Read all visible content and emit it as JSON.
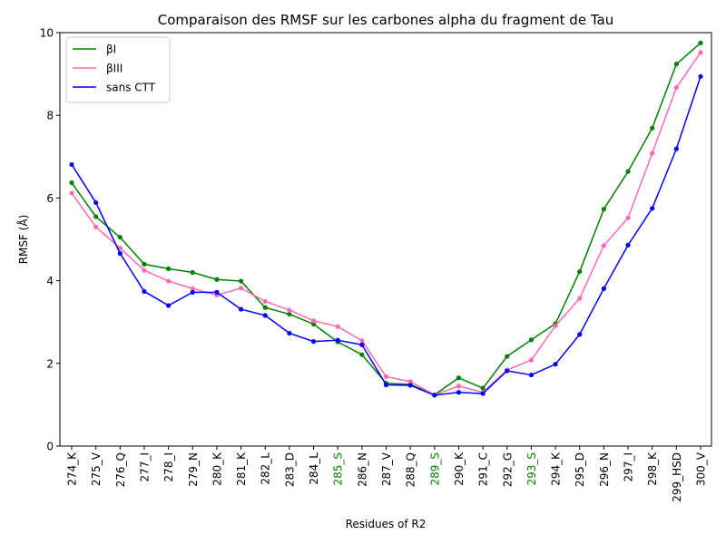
{
  "chart_data": {
    "type": "line",
    "title": "Comparaison des RMSF sur les carbones alpha du fragment de Tau",
    "xlabel": "Residues of R2",
    "ylabel": "RMSF (Å)",
    "ylim": [
      0,
      10
    ],
    "yticks": [
      0,
      2,
      4,
      6,
      8,
      10
    ],
    "grid": false,
    "legend_position": "top-left",
    "categories": [
      "274_K",
      "275_V",
      "276_Q",
      "277_I",
      "278_I",
      "279_N",
      "280_K",
      "281_K",
      "282_L",
      "283_D",
      "284_L",
      "285_S",
      "286_N",
      "287_V",
      "288_Q",
      "289_S",
      "290_K",
      "291_C",
      "292_G",
      "293_S",
      "294_K",
      "295_D",
      "296_N",
      "297_I",
      "298_K",
      "299_HSD",
      "300_V"
    ],
    "highlighted_categories": [
      "285_S",
      "289_S",
      "293_S"
    ],
    "highlight_color": "#008000",
    "series": [
      {
        "name": "βI",
        "color": "#008000",
        "values": [
          6.37,
          5.55,
          5.05,
          4.4,
          4.29,
          4.2,
          4.03,
          3.99,
          3.35,
          3.19,
          2.95,
          2.52,
          2.21,
          1.52,
          1.49,
          1.24,
          1.65,
          1.4,
          2.17,
          2.57,
          2.96,
          4.22,
          5.73,
          6.64,
          7.69,
          9.24,
          9.75
        ]
      },
      {
        "name": "βIII",
        "color": "#ff69b4",
        "values": [
          6.12,
          5.3,
          4.79,
          4.25,
          3.99,
          3.81,
          3.65,
          3.82,
          3.5,
          3.29,
          3.03,
          2.89,
          2.55,
          1.68,
          1.56,
          1.24,
          1.45,
          1.3,
          1.84,
          2.08,
          2.91,
          3.57,
          4.85,
          5.52,
          7.08,
          8.67,
          9.52
        ]
      },
      {
        "name": "sans CTT",
        "color": "#0000ff",
        "values": [
          6.81,
          5.89,
          4.66,
          3.74,
          3.4,
          3.72,
          3.72,
          3.31,
          3.16,
          2.73,
          2.53,
          2.56,
          2.45,
          1.48,
          1.47,
          1.23,
          1.3,
          1.27,
          1.82,
          1.72,
          1.98,
          2.7,
          3.81,
          4.86,
          5.75,
          7.19,
          8.94
        ]
      }
    ]
  }
}
